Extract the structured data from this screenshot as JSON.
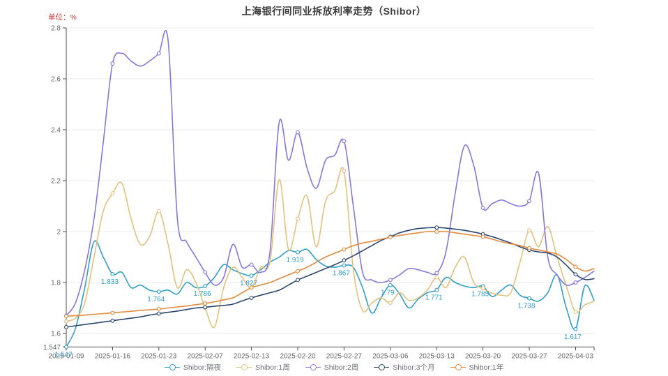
{
  "title": "上海银行间同业拆放利率走势（Shibor）",
  "unit_label": "单位：%",
  "colors": {
    "accent_red": "#c23531",
    "axis_line": "#4d4d4d",
    "tick_text": "#666666",
    "grid_line": "#e9e9e9",
    "legend_text": "#6e7079",
    "background": "#ffffff"
  },
  "chart_data": {
    "type": "line",
    "title": "上海银行间同业拆放利率走势（Shibor）",
    "ylabel": "单位：%",
    "grid": "horizontal",
    "legend_position": "bottom",
    "smooth": true,
    "ylim": [
      1.547,
      2.8
    ],
    "y_tick_values": [
      1.547,
      1.6,
      1.8,
      2,
      2.2,
      2.4,
      2.6,
      2.8
    ],
    "y_tick_labels": [
      "1.547",
      "1.6",
      "1.8",
      "2",
      "2.2",
      "2.4",
      "2.6",
      "2.8"
    ],
    "x_labels": [
      "2025-01-09",
      "2025-01-16",
      "2025-01-23",
      "2025-02-07",
      "2025-02-13",
      "2025-02-20",
      "2025-02-27",
      "2025-03-06",
      "2025-03-13",
      "2025-03-20",
      "2025-03-27",
      "2025-04-03"
    ],
    "label_indices": [
      0,
      5,
      10,
      15,
      20,
      25,
      30,
      35,
      40,
      45,
      50,
      55
    ],
    "n_points": 58,
    "series": [
      {
        "name": "Shibor:隔夜",
        "color": "#2f9ec8",
        "show_point_labels": true,
        "point_labels": [
          "1.547",
          "1.833",
          "1.764",
          "1.786",
          "1.827",
          "1.919",
          "1.867",
          "1.79",
          "1.771",
          "1.785",
          "1.738",
          "1.617"
        ],
        "values": [
          1.547,
          1.62,
          1.78,
          1.96,
          1.9,
          1.833,
          1.84,
          1.78,
          1.79,
          1.77,
          1.764,
          1.77,
          1.755,
          1.8,
          1.78,
          1.786,
          1.82,
          1.87,
          1.85,
          1.835,
          1.827,
          1.85,
          1.88,
          1.9,
          1.925,
          1.919,
          1.93,
          1.89,
          1.865,
          1.86,
          1.867,
          1.86,
          1.78,
          1.68,
          1.74,
          1.79,
          1.755,
          1.7,
          1.735,
          1.76,
          1.771,
          1.82,
          1.8,
          1.786,
          1.78,
          1.785,
          1.745,
          1.77,
          1.79,
          1.75,
          1.738,
          1.727,
          1.76,
          1.83,
          1.7,
          1.617,
          1.787,
          1.73
        ]
      },
      {
        "name": "Shibor:1周",
        "color": "#e3c17e",
        "show_point_labels": false,
        "values": [
          1.648,
          1.66,
          1.72,
          1.9,
          2.08,
          2.15,
          2.19,
          2.05,
          1.95,
          1.98,
          2.08,
          1.95,
          1.78,
          1.85,
          1.8,
          1.7,
          1.625,
          1.78,
          1.86,
          1.82,
          1.78,
          1.86,
          1.88,
          2.205,
          1.93,
          2.05,
          2.14,
          1.94,
          2.12,
          2.16,
          2.238,
          1.85,
          1.69,
          1.72,
          1.74,
          1.72,
          1.76,
          1.73,
          1.74,
          1.77,
          1.82,
          1.78,
          1.86,
          1.9,
          1.8,
          1.777,
          1.758,
          1.75,
          1.76,
          1.88,
          2.005,
          1.94,
          2.02,
          1.9,
          1.786,
          1.685,
          1.712,
          1.726
        ]
      },
      {
        "name": "Shibor:2周",
        "color": "#8677d9",
        "show_point_labels": false,
        "values": [
          1.67,
          1.72,
          1.85,
          2.05,
          2.35,
          2.66,
          2.7,
          2.67,
          2.65,
          2.67,
          2.7,
          2.75,
          2.05,
          1.96,
          1.9,
          1.84,
          1.79,
          1.82,
          1.95,
          1.86,
          1.87,
          1.84,
          1.92,
          2.43,
          2.28,
          2.39,
          2.25,
          2.17,
          2.28,
          2.3,
          2.355,
          2.1,
          1.84,
          1.81,
          1.8,
          1.81,
          1.83,
          1.855,
          1.85,
          1.84,
          1.837,
          1.92,
          2.15,
          2.337,
          2.26,
          2.093,
          2.11,
          2.124,
          2.11,
          2.1,
          2.12,
          2.23,
          1.9,
          1.83,
          1.79,
          1.8,
          1.82,
          1.845
        ]
      },
      {
        "name": "Shibor:3个月",
        "color": "#2b466f",
        "show_point_labels": false,
        "values": [
          1.625,
          1.63,
          1.635,
          1.64,
          1.645,
          1.65,
          1.655,
          1.66,
          1.665,
          1.672,
          1.678,
          1.683,
          1.688,
          1.694,
          1.7,
          1.703,
          1.707,
          1.71,
          1.715,
          1.728,
          1.74,
          1.75,
          1.76,
          1.77,
          1.79,
          1.81,
          1.825,
          1.84,
          1.855,
          1.87,
          1.887,
          1.905,
          1.925,
          1.945,
          1.965,
          1.98,
          1.995,
          2.005,
          2.012,
          2.015,
          2.016,
          2.014,
          2.01,
          2.005,
          1.998,
          1.99,
          1.98,
          1.968,
          1.955,
          1.94,
          1.928,
          1.92,
          1.916,
          1.9,
          1.868,
          1.832,
          1.812,
          1.815
        ]
      },
      {
        "name": "Shibor:1年",
        "color": "#e08b3d",
        "show_point_labels": false,
        "values": [
          1.668,
          1.67,
          1.672,
          1.675,
          1.678,
          1.681,
          1.684,
          1.687,
          1.69,
          1.693,
          1.696,
          1.7,
          1.704,
          1.708,
          1.713,
          1.718,
          1.724,
          1.732,
          1.74,
          1.76,
          1.78,
          1.79,
          1.8,
          1.815,
          1.83,
          1.845,
          1.86,
          1.88,
          1.9,
          1.915,
          1.93,
          1.945,
          1.955,
          1.962,
          1.97,
          1.978,
          1.985,
          1.99,
          1.995,
          2.0,
          2.0,
          2.0,
          1.995,
          1.99,
          1.985,
          1.98,
          1.97,
          1.96,
          1.952,
          1.945,
          1.935,
          1.928,
          1.92,
          1.912,
          1.89,
          1.862,
          1.845,
          1.855
        ]
      }
    ]
  }
}
